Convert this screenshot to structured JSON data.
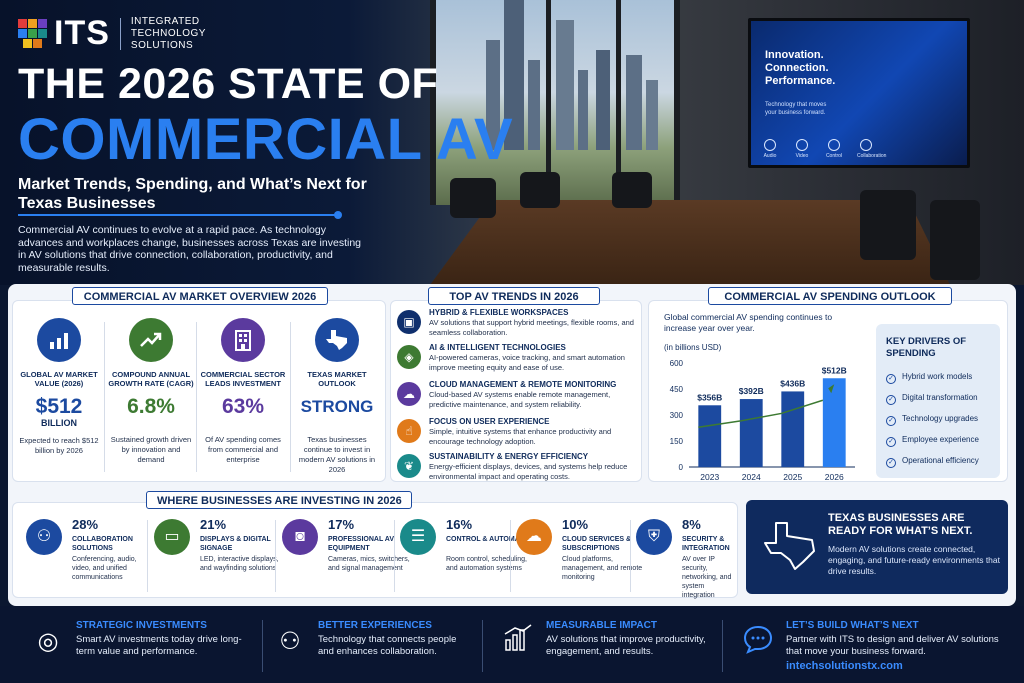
{
  "brand": {
    "logo": "ITS",
    "sub_line1": "INTEGRATED",
    "sub_line2": "TECHNOLOGY",
    "sub_line3": "SOLUTIONS"
  },
  "hero": {
    "title_line1": "THE 2026 STATE OF",
    "title_line2": "COMMERCIAL AV",
    "subtitle": "Market Trends, Spending, and What’s Next for Texas Businesses",
    "intro": "Commercial AV continues to evolve at a rapid pace. As technology advances and workplaces change, businesses across Texas are investing in AV solutions that drive connection, collaboration, productivity, and measurable results.",
    "screen_headline": "Innovation. Connection. Performance.",
    "screen_sub": "Technology that moves your business forward.",
    "screen_icons": [
      "Audio",
      "Video",
      "Control",
      "Collaboration"
    ]
  },
  "overview": {
    "title": "COMMERCIAL AV MARKET OVERVIEW 2026",
    "items": [
      {
        "label": "GLOBAL AV MARKET VALUE (2026)",
        "value": "$512",
        "value_sub": "BILLION",
        "desc": "Expected to reach $512 billion by 2026",
        "icon": "bar-chart-icon",
        "color": "#1c4aa0"
      },
      {
        "label": "COMPOUND ANNUAL GROWTH RATE (CAGR)",
        "value": "6.8%",
        "value_sub": "",
        "desc": "Sustained growth driven by innovation and demand",
        "icon": "trend-up-icon",
        "color": "#3d7a32"
      },
      {
        "label": "COMMERCIAL SECTOR LEADS INVESTMENT",
        "value": "63%",
        "value_sub": "",
        "desc": "Of AV spending comes from commercial and enterprise",
        "icon": "building-icon",
        "color": "#5b3a9e"
      },
      {
        "label": "TEXAS MARKET OUTLOOK",
        "value": "STRONG",
        "value_sub": "",
        "desc": "Texas businesses continue to invest in modern AV solutions in 2026",
        "icon": "texas-icon",
        "color": "#1c4aa0"
      }
    ]
  },
  "trends": {
    "title": "TOP AV TRENDS IN 2026",
    "items": [
      {
        "title": "HYBRID & FLEXIBLE WORKSPACES",
        "desc": "AV solutions that support hybrid meetings, flexible rooms, and seamless collaboration."
      },
      {
        "title": "AI & INTELLIGENT TECHNOLOGIES",
        "desc": "AI-powered cameras, voice tracking, and smart automation improve meeting equity and ease of use."
      },
      {
        "title": "CLOUD MANAGEMENT & REMOTE MONITORING",
        "desc": "Cloud-based AV systems enable remote management, predictive maintenance, and system reliability."
      },
      {
        "title": "FOCUS ON USER EXPERIENCE",
        "desc": "Simple, intuitive systems that enhance productivity and encourage technology adoption."
      },
      {
        "title": "SUSTAINABILITY & ENERGY EFFICIENCY",
        "desc": "Energy-efficient displays, devices, and systems help reduce environmental impact and operating costs."
      }
    ]
  },
  "spending": {
    "title": "COMMERCIAL AV SPENDING OUTLOOK",
    "desc": "Global commercial AV spending continues to increase year over year.",
    "unit_note": "(in billions USD)"
  },
  "chart_data": {
    "type": "bar",
    "categories": [
      "2023",
      "2024",
      "2025",
      "2026"
    ],
    "values": [
      356,
      392,
      436,
      512
    ],
    "data_labels": [
      "$356B",
      "$392B",
      "$436B",
      "$512B"
    ],
    "title": "",
    "xlabel": "",
    "ylabel": "",
    "ylim": [
      0,
      600
    ],
    "yticks": [
      0,
      150,
      300,
      450,
      600
    ],
    "trend_line": true,
    "grid": false,
    "bar_color": "#1c4aa0",
    "last_bar_color": "#2a7ff0",
    "line_color": "#3d7a32"
  },
  "drivers": {
    "title": "KEY DRIVERS OF SPENDING",
    "items": [
      "Hybrid work models",
      "Digital transformation",
      "Technology upgrades",
      "Employee experience",
      "Operational efficiency"
    ]
  },
  "investing": {
    "title": "WHERE BUSINESSES ARE INVESTING IN 2026",
    "items": [
      {
        "pct": "28%",
        "title": "COLLABORATION SOLUTIONS",
        "desc": "Conferencing, audio, video, and unified communications",
        "icon": "people-icon",
        "color": "#1c4aa0"
      },
      {
        "pct": "21%",
        "title": "DISPLAYS & DIGITAL SIGNAGE",
        "desc": "LED, interactive displays, and wayfinding solutions",
        "icon": "monitor-icon",
        "color": "#3d7a32"
      },
      {
        "pct": "17%",
        "title": "PROFESSIONAL AV EQUIPMENT",
        "desc": "Cameras, mics, switchers, and signal management",
        "icon": "camera-icon",
        "color": "#5b3a9e"
      },
      {
        "pct": "16%",
        "title": "CONTROL & AUTOMATION",
        "desc": "Room control, scheduling, and automation systems",
        "icon": "sliders-icon",
        "color": "#1a8a8a"
      },
      {
        "pct": "10%",
        "title": "CLOUD SERVICES & SUBSCRIPTIONS",
        "desc": "Cloud platforms, management, and remote monitoring",
        "icon": "cloud-icon",
        "color": "#e07a1a"
      },
      {
        "pct": "8%",
        "title": "SECURITY & INTEGRATION",
        "desc": "AV over IP security, networking, and system integration",
        "icon": "shield-icon",
        "color": "#1c4aa0"
      }
    ]
  },
  "texas": {
    "title": "TEXAS BUSINESSES ARE READY FOR WHAT’S NEXT.",
    "desc": "Modern AV solutions create connected, engaging, and future-ready environments that drive results."
  },
  "footer": {
    "items": [
      {
        "title": "STRATEGIC INVESTMENTS",
        "desc": "Smart AV investments today drive long-term value and performance.",
        "icon": "target-icon"
      },
      {
        "title": "BETTER EXPERIENCES",
        "desc": "Technology that connects people and enhances collaboration.",
        "icon": "group-icon"
      },
      {
        "title": "MEASURABLE IMPACT",
        "desc": "AV solutions that improve productivity, engagement, and results.",
        "icon": "growth-chart-icon"
      },
      {
        "title": "LET’S BUILD WHAT’S NEXT",
        "desc": "Partner with ITS to design and deliver AV solutions that move your business forward.",
        "icon": "chat-icon"
      }
    ],
    "link": "intechsolutionstx.com"
  }
}
